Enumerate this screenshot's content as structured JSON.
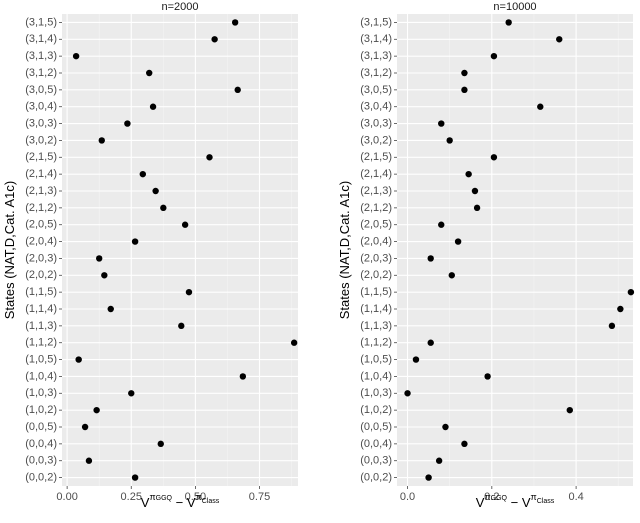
{
  "chart_data": [
    {
      "type": "scatter",
      "title": "n=2000",
      "ylabel": "States (NAT,D,Cat. A1c)",
      "xlabel": {
        "base": "V",
        "term1": "π",
        "term1_sub": "GGQ",
        "minus": " − ",
        "term2": "V",
        "term2_sup": "π",
        "term2_sub": "Class"
      },
      "xlim": [
        -0.02,
        0.9
      ],
      "xticks": [
        0.0,
        0.25,
        0.5,
        0.75
      ],
      "xtick_labels": [
        "0.00",
        "0.25",
        "0.50",
        "0.75"
      ],
      "categories": [
        "(0,0,2)",
        "(0,0,3)",
        "(0,0,4)",
        "(0,0,5)",
        "(1,0,2)",
        "(1,0,3)",
        "(1,0,4)",
        "(1,0,5)",
        "(1,1,2)",
        "(1,1,3)",
        "(1,1,4)",
        "(1,1,5)",
        "(2,0,2)",
        "(2,0,3)",
        "(2,0,4)",
        "(2,0,5)",
        "(2,1,2)",
        "(2,1,3)",
        "(2,1,4)",
        "(2,1,5)",
        "(3,0,2)",
        "(3,0,3)",
        "(3,0,4)",
        "(3,0,5)",
        "(3,1,2)",
        "(3,1,3)",
        "(3,1,4)",
        "(3,1,5)"
      ],
      "values": [
        0.265,
        0.085,
        0.365,
        0.07,
        0.115,
        0.25,
        0.685,
        0.045,
        0.885,
        0.445,
        0.17,
        0.475,
        0.145,
        0.125,
        0.265,
        0.46,
        0.375,
        0.345,
        0.295,
        0.555,
        0.135,
        0.235,
        0.335,
        0.665,
        0.32,
        0.035,
        0.575,
        0.655
      ],
      "grid": true
    },
    {
      "type": "scatter",
      "title": "n=10000",
      "ylabel": "States (NAT,D,Cat. A1c)",
      "xlabel": {
        "base": "V",
        "term1": "π",
        "term1_sub": "GGQ",
        "minus": " − ",
        "term2": "V",
        "term2_sup": "π",
        "term2_sub": "Class"
      },
      "xlim": [
        -0.025,
        0.535
      ],
      "xticks": [
        0.0,
        0.2,
        0.4
      ],
      "xtick_labels": [
        "0.0",
        "0.2",
        "0.4"
      ],
      "categories": [
        "(0,0,2)",
        "(0,0,3)",
        "(0,0,4)",
        "(0,0,5)",
        "(1,0,2)",
        "(1,0,3)",
        "(1,0,4)",
        "(1,0,5)",
        "(1,1,2)",
        "(1,1,3)",
        "(1,1,4)",
        "(1,1,5)",
        "(2,0,2)",
        "(2,0,3)",
        "(2,0,4)",
        "(2,0,5)",
        "(2,1,2)",
        "(2,1,3)",
        "(2,1,4)",
        "(2,1,5)",
        "(3,0,2)",
        "(3,0,3)",
        "(3,0,4)",
        "(3,0,5)",
        "(3,1,2)",
        "(3,1,3)",
        "(3,1,4)",
        "(3,1,5)"
      ],
      "values": [
        0.05,
        0.075,
        0.135,
        0.09,
        0.385,
        0.0,
        0.19,
        0.02,
        0.055,
        0.485,
        0.505,
        0.53,
        0.105,
        0.055,
        0.12,
        0.08,
        0.165,
        0.16,
        0.145,
        0.205,
        0.1,
        0.08,
        0.315,
        0.135,
        0.135,
        0.205,
        0.36,
        0.24
      ],
      "grid": true
    }
  ]
}
